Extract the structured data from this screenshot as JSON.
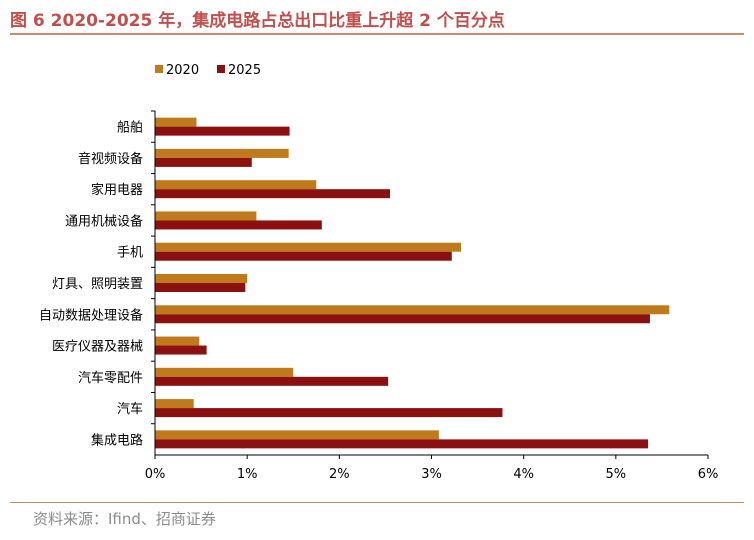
{
  "header": {
    "title": "图 6 2020-2025 年，集成电路占总出口比重上升超 2 个百分点"
  },
  "footer": {
    "source": "资料来源：Ifind、招商证券"
  },
  "colors": {
    "series_2020": "#c07a1b",
    "series_2025": "#8b1010",
    "accent": "#c0504d"
  },
  "chart_data": {
    "type": "bar",
    "orientation": "horizontal",
    "title": "",
    "xlabel": "",
    "ylabel": "",
    "xlim": [
      0,
      6
    ],
    "x_ticks": [
      0,
      1,
      2,
      3,
      4,
      5,
      6
    ],
    "x_tick_labels": [
      "0%",
      "1%",
      "2%",
      "3%",
      "4%",
      "5%",
      "6%"
    ],
    "unit": "%",
    "legend_position": "top-left",
    "grid": false,
    "categories": [
      "船舶",
      "音视频设备",
      "家用电器",
      "通用机械设备",
      "手机",
      "灯具、照明装置",
      "自动数据处理设备",
      "医疗仪器及器械",
      "汽车零配件",
      "汽车",
      "集成电路"
    ],
    "series": [
      {
        "name": "2020",
        "values": [
          0.45,
          1.45,
          1.75,
          1.1,
          3.32,
          1.0,
          5.58,
          0.48,
          1.5,
          0.42,
          3.08
        ]
      },
      {
        "name": "2025",
        "values": [
          1.46,
          1.05,
          2.55,
          1.81,
          3.22,
          0.98,
          5.37,
          0.56,
          2.53,
          3.77,
          5.35
        ]
      }
    ]
  }
}
